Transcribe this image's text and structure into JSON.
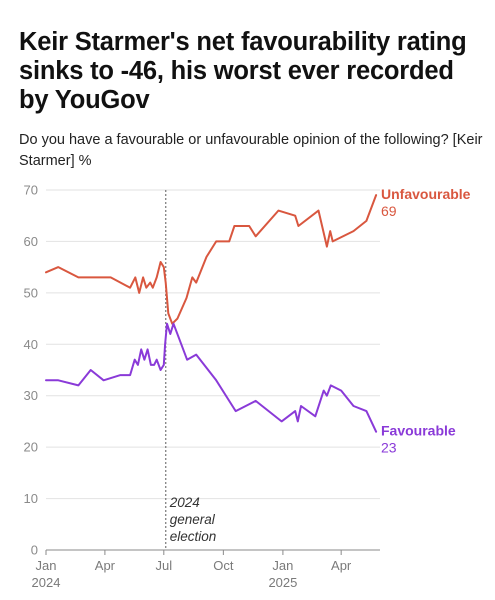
{
  "title": "Keir Starmer's net favourability rating sinks to -46, his worst ever recorded by YouGov",
  "subtitle": "Do you have a favourable or unfavourable opinion of the following? [Keir Starmer] %",
  "colors": {
    "unfavourable": "#d9573f",
    "favourable": "#8a3ad8",
    "grid": "#e2e2e2",
    "axis": "#8a8a8a"
  },
  "chart_data": {
    "type": "line",
    "title": "Keir Starmer's net favourability rating sinks to -46, his worst ever recorded by YouGov",
    "subtitle": "Do you have a favourable or unfavourable opinion of the following? [Keir Starmer] %",
    "xlabel": "",
    "ylabel": "",
    "ylim": [
      0,
      70
    ],
    "yticks": [
      0,
      10,
      20,
      30,
      40,
      50,
      60,
      70
    ],
    "xlim": [
      "2024-01-01",
      "2025-05-31"
    ],
    "xticks": [
      {
        "date": "2024-01-01",
        "label": "Jan",
        "sublabel": "2024"
      },
      {
        "date": "2024-04-01",
        "label": "Apr",
        "sublabel": ""
      },
      {
        "date": "2024-07-01",
        "label": "Jul",
        "sublabel": ""
      },
      {
        "date": "2024-10-01",
        "label": "Oct",
        "sublabel": ""
      },
      {
        "date": "2025-01-01",
        "label": "Jan",
        "sublabel": "2025"
      },
      {
        "date": "2025-04-01",
        "label": "Apr",
        "sublabel": ""
      }
    ],
    "grid": true,
    "legend": "none (series labelled at line ends)",
    "annotations": [
      {
        "type": "vline",
        "date": "2024-07-04",
        "label_lines": [
          "2024",
          "general",
          "election"
        ],
        "style": "dotted"
      }
    ],
    "series": [
      {
        "name": "Unfavourable",
        "end_label": "69",
        "color": "#d9573f",
        "points": [
          [
            "2024-01-01",
            54
          ],
          [
            "2024-01-20",
            55
          ],
          [
            "2024-02-20",
            53
          ],
          [
            "2024-03-10",
            53
          ],
          [
            "2024-04-10",
            53
          ],
          [
            "2024-05-10",
            51
          ],
          [
            "2024-05-18",
            53
          ],
          [
            "2024-05-24",
            50
          ],
          [
            "2024-05-30",
            53
          ],
          [
            "2024-06-04",
            51
          ],
          [
            "2024-06-10",
            52
          ],
          [
            "2024-06-14",
            51
          ],
          [
            "2024-06-20",
            53
          ],
          [
            "2024-06-26",
            56
          ],
          [
            "2024-07-01",
            55
          ],
          [
            "2024-07-04",
            52
          ],
          [
            "2024-07-08",
            46
          ],
          [
            "2024-07-14",
            44
          ],
          [
            "2024-07-22",
            45
          ],
          [
            "2024-08-05",
            49
          ],
          [
            "2024-08-14",
            53
          ],
          [
            "2024-08-20",
            52
          ],
          [
            "2024-09-05",
            57
          ],
          [
            "2024-09-20",
            60
          ],
          [
            "2024-10-10",
            60
          ],
          [
            "2024-10-18",
            63
          ],
          [
            "2024-11-10",
            63
          ],
          [
            "2024-11-20",
            61
          ],
          [
            "2024-12-25",
            66
          ],
          [
            "2025-01-20",
            65
          ],
          [
            "2025-01-25",
            63
          ],
          [
            "2025-02-25",
            66
          ],
          [
            "2025-03-10",
            59
          ],
          [
            "2025-03-15",
            62
          ],
          [
            "2025-03-19",
            60
          ],
          [
            "2025-04-20",
            62
          ],
          [
            "2025-05-10",
            64
          ],
          [
            "2025-05-25",
            69
          ]
        ]
      },
      {
        "name": "Favourable",
        "end_label": "23",
        "color": "#8a3ad8",
        "points": [
          [
            "2024-01-01",
            33
          ],
          [
            "2024-01-20",
            33
          ],
          [
            "2024-02-20",
            32
          ],
          [
            "2024-03-10",
            35
          ],
          [
            "2024-03-30",
            33
          ],
          [
            "2024-04-25",
            34
          ],
          [
            "2024-05-10",
            34
          ],
          [
            "2024-05-17",
            37
          ],
          [
            "2024-05-22",
            36
          ],
          [
            "2024-05-27",
            39
          ],
          [
            "2024-06-01",
            37
          ],
          [
            "2024-06-06",
            39
          ],
          [
            "2024-06-11",
            36
          ],
          [
            "2024-06-16",
            36
          ],
          [
            "2024-06-20",
            37
          ],
          [
            "2024-06-26",
            35
          ],
          [
            "2024-07-01",
            36
          ],
          [
            "2024-07-03",
            40
          ],
          [
            "2024-07-06",
            44
          ],
          [
            "2024-07-11",
            42
          ],
          [
            "2024-07-16",
            44
          ],
          [
            "2024-07-28",
            40
          ],
          [
            "2024-08-06",
            37
          ],
          [
            "2024-08-20",
            38
          ],
          [
            "2024-09-20",
            33
          ],
          [
            "2024-10-20",
            27
          ],
          [
            "2024-11-20",
            29
          ],
          [
            "2024-12-30",
            25
          ],
          [
            "2025-01-20",
            27
          ],
          [
            "2025-01-24",
            25
          ],
          [
            "2025-01-29",
            28
          ],
          [
            "2025-02-20",
            26
          ],
          [
            "2025-03-05",
            31
          ],
          [
            "2025-03-10",
            30
          ],
          [
            "2025-03-16",
            32
          ],
          [
            "2025-04-01",
            31
          ],
          [
            "2025-04-20",
            28
          ],
          [
            "2025-05-10",
            27
          ],
          [
            "2025-05-25",
            23
          ]
        ]
      }
    ]
  }
}
